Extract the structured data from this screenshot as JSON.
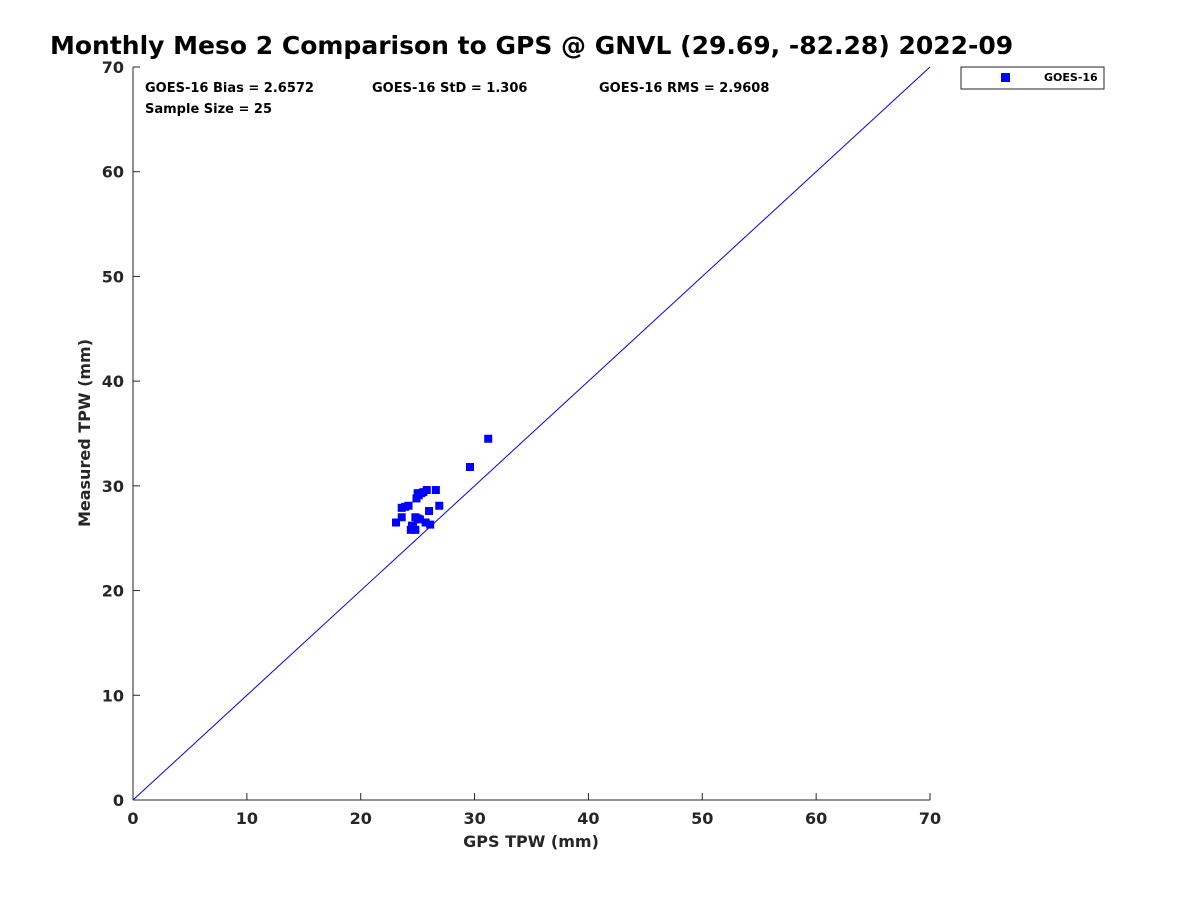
{
  "chart_data": {
    "type": "scatter",
    "title": "Monthly Meso 2 Comparison to GPS @ GNVL (29.69, -82.28) 2022-09",
    "xlabel": "GPS TPW (mm)",
    "ylabel": "Measured TPW (mm)",
    "xlim": [
      0,
      70
    ],
    "ylim": [
      0,
      70
    ],
    "x_ticks": [
      "0",
      "10",
      "20",
      "30",
      "40",
      "50",
      "60",
      "70"
    ],
    "y_ticks": [
      "0",
      "10",
      "20",
      "30",
      "40",
      "50",
      "60",
      "70"
    ],
    "grid": false,
    "legend_position": "outside-top-right",
    "reference_line": {
      "from": [
        0,
        0
      ],
      "to": [
        70,
        70
      ],
      "color": "#0000ff"
    },
    "annotations": {
      "bias": "GOES-16 Bias = 2.6572",
      "std": "GOES-16 StD = 1.306",
      "rms": "GOES-16 RMS = 2.9608",
      "sample_size": "Sample Size = 25"
    },
    "series": [
      {
        "name": "GOES-16",
        "color": "#0000ff",
        "marker": "square",
        "points": [
          [
            23.1,
            26.5
          ],
          [
            23.6,
            27.0
          ],
          [
            23.6,
            27.9
          ],
          [
            24.2,
            28.1
          ],
          [
            24.4,
            25.8
          ],
          [
            24.5,
            26.2
          ],
          [
            24.8,
            25.8
          ],
          [
            24.8,
            27.0
          ],
          [
            24.9,
            28.8
          ],
          [
            25.0,
            26.9
          ],
          [
            25.0,
            29.3
          ],
          [
            25.1,
            29.1
          ],
          [
            25.3,
            29.3
          ],
          [
            25.5,
            29.4
          ],
          [
            25.8,
            29.6
          ],
          [
            25.7,
            26.5
          ],
          [
            26.0,
            27.6
          ],
          [
            26.1,
            26.3
          ],
          [
            26.6,
            29.6
          ],
          [
            26.9,
            28.1
          ],
          [
            29.6,
            31.8
          ],
          [
            31.2,
            34.5
          ],
          [
            24.6,
            26.1
          ],
          [
            23.9,
            28.0
          ],
          [
            25.2,
            26.8
          ]
        ]
      }
    ]
  }
}
